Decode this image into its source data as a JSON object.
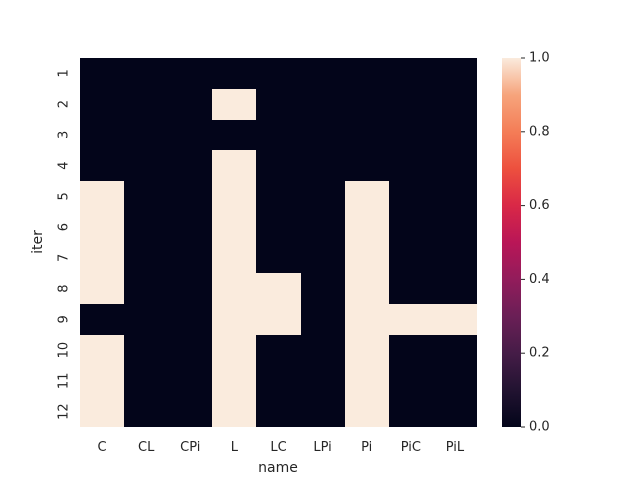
{
  "chart_data": {
    "type": "heatmap",
    "xlabel": "name",
    "ylabel": "iter",
    "x_categories": [
      "C",
      "CL",
      "CPi",
      "L",
      "LC",
      "LPi",
      "Pi",
      "PiC",
      "PiL"
    ],
    "y_categories": [
      "1",
      "2",
      "3",
      "4",
      "5",
      "6",
      "7",
      "8",
      "9",
      "10",
      "11",
      "12"
    ],
    "values": [
      [
        0,
        0,
        0,
        0,
        0,
        0,
        0,
        0,
        0
      ],
      [
        0,
        0,
        0,
        1,
        0,
        0,
        0,
        0,
        0
      ],
      [
        0,
        0,
        0,
        0,
        0,
        0,
        0,
        0,
        0
      ],
      [
        0,
        0,
        0,
        1,
        0,
        0,
        0,
        0,
        0
      ],
      [
        1,
        0,
        0,
        1,
        0,
        0,
        1,
        0,
        0
      ],
      [
        1,
        0,
        0,
        1,
        0,
        0,
        1,
        0,
        0
      ],
      [
        1,
        0,
        0,
        1,
        0,
        0,
        1,
        0,
        0
      ],
      [
        1,
        0,
        0,
        1,
        1,
        0,
        1,
        0,
        0
      ],
      [
        0,
        0,
        0,
        1,
        1,
        0,
        1,
        1,
        1
      ],
      [
        1,
        0,
        0,
        1,
        0,
        0,
        1,
        0,
        0
      ],
      [
        1,
        0,
        0,
        1,
        0,
        0,
        1,
        0,
        0
      ],
      [
        1,
        0,
        0,
        1,
        0,
        0,
        1,
        0,
        0
      ]
    ],
    "vmin": 0.0,
    "vmax": 1.0,
    "colormap": "rocket",
    "low_color": "#03051a",
    "high_color": "#faebdd",
    "colorbar": {
      "ticks": [
        "0.0",
        "0.2",
        "0.4",
        "0.6",
        "0.8",
        "1.0"
      ],
      "tick_values": [
        0.0,
        0.2,
        0.4,
        0.6,
        0.8,
        1.0
      ],
      "placement": "right"
    },
    "grid": false
  }
}
